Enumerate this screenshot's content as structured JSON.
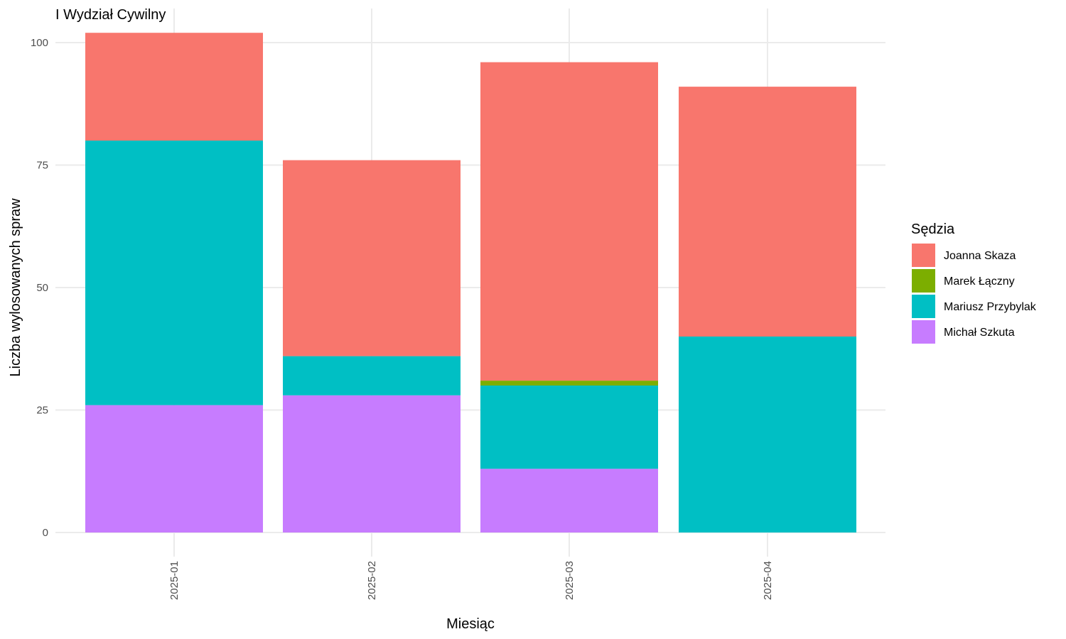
{
  "chart_data": {
    "type": "bar",
    "stacked": true,
    "title": "I Wydział Cywilny",
    "xlabel": "Miesiąc",
    "ylabel": "Liczba wylosowanych spraw",
    "ylim": [
      0,
      102
    ],
    "yticks": [
      0,
      25,
      50,
      75,
      100
    ],
    "categories": [
      "2025-01",
      "2025-02",
      "2025-03",
      "2025-04"
    ],
    "legend_title": "Sędzia",
    "legend_position": "right",
    "grid": true,
    "series": [
      {
        "name": "Michał Szkuta",
        "color": "#C77CFF",
        "values": [
          26,
          28,
          13,
          0
        ]
      },
      {
        "name": "Mariusz Przybylak",
        "color": "#00BFC4",
        "values": [
          54,
          8,
          17,
          40
        ]
      },
      {
        "name": "Marek Łączny",
        "color": "#7CAE00",
        "values": [
          0,
          0,
          1,
          0
        ]
      },
      {
        "name": "Joanna Skaza",
        "color": "#F8766D",
        "values": [
          22,
          40,
          65,
          51
        ]
      }
    ],
    "legend_order": [
      "Joanna Skaza",
      "Marek Łączny",
      "Mariusz Przybylak",
      "Michał Szkuta"
    ]
  }
}
